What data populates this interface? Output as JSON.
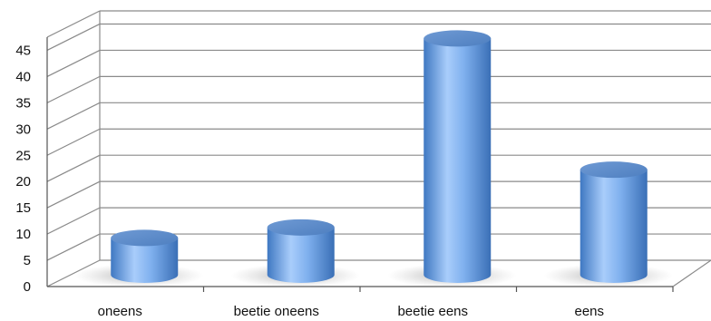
{
  "chart_data": {
    "type": "bar",
    "style": "3d-cylinder",
    "categories": [
      "oneens",
      "beetie oneens",
      "beetie eens",
      "eens"
    ],
    "values": [
      7,
      9,
      45,
      20
    ],
    "ylim": [
      0,
      45
    ],
    "yticks": [
      "0",
      "5",
      "10",
      "15",
      "20",
      "25",
      "30",
      "35",
      "40",
      "45"
    ],
    "grid": true,
    "legend": "none",
    "bar_color": "#5b93d6"
  }
}
